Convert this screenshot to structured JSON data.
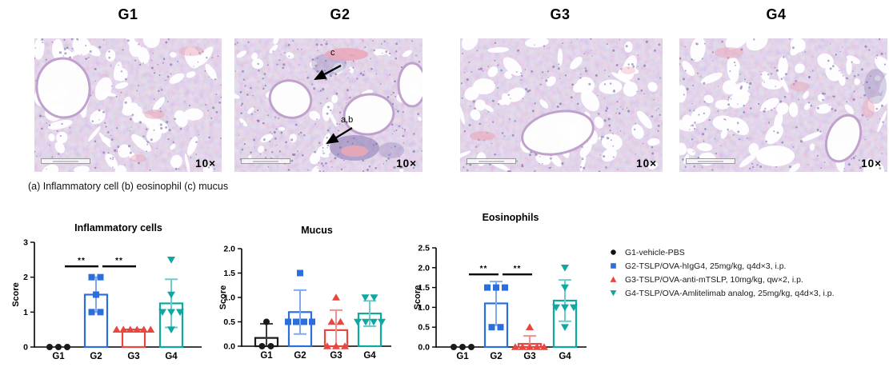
{
  "figure": {
    "panels": [
      {
        "id": "G1",
        "title": "G1",
        "magnification": "10×"
      },
      {
        "id": "G2",
        "title": "G2",
        "magnification": "10×",
        "annotations": [
          {
            "label": "c"
          },
          {
            "label": "a,b"
          }
        ]
      },
      {
        "id": "G3",
        "title": "G3",
        "magnification": "10×"
      },
      {
        "id": "G4",
        "title": "G4",
        "magnification": "10×"
      }
    ],
    "caption": "(a) Inflammatory cell (b) eosinophil (c) mucus"
  },
  "chart_data": [
    {
      "type": "bar",
      "title": "Inflammatory cells",
      "ylabel": "Score",
      "ylim": [
        0,
        3
      ],
      "yticks": [
        0,
        1,
        2,
        3
      ],
      "ytick_labels": [
        "0",
        "1",
        "2",
        "3"
      ],
      "categories": [
        "G1",
        "G2",
        "G3",
        "G4"
      ],
      "series": [
        {
          "name": "G1",
          "color": "#1a1a1a",
          "marker": "circle",
          "mean": 0,
          "sd": 0,
          "points": [
            0,
            0,
            0
          ]
        },
        {
          "name": "G2",
          "color": "#2b6fdf",
          "marker": "square",
          "mean": 1.5,
          "sd": 0.5,
          "points": [
            2,
            2,
            1.5,
            1,
            1
          ]
        },
        {
          "name": "G3",
          "color": "#e8463f",
          "marker": "triangle-up",
          "mean": 0.5,
          "sd": 0,
          "points": [
            0.5,
            0.5,
            0.5,
            0.5,
            0.5,
            0.5
          ]
        },
        {
          "name": "G4",
          "color": "#0ea8a2",
          "marker": "triangle-down",
          "mean": 1.25,
          "sd": 0.69,
          "points": [
            2.5,
            1.5,
            1,
            1,
            1,
            0.5
          ]
        }
      ],
      "significance": [
        {
          "from": "G1",
          "to": "G2",
          "label": "**",
          "y": 2.31
        },
        {
          "from": "G2",
          "to": "G3",
          "label": "**",
          "y": 2.31
        }
      ]
    },
    {
      "type": "bar",
      "title": "Mucus",
      "ylabel": "Score",
      "ylim": [
        0,
        2
      ],
      "yticks": [
        0,
        0.5,
        1,
        1.5,
        2
      ],
      "ytick_labels": [
        "0.0",
        "0.5",
        "1.0",
        "1.5",
        "2.0"
      ],
      "categories": [
        "G1",
        "G2",
        "G3",
        "G4"
      ],
      "series": [
        {
          "name": "G1",
          "color": "#1a1a1a",
          "marker": "circle",
          "mean": 0.17,
          "sd": 0.29,
          "points": [
            0.5,
            0,
            0
          ]
        },
        {
          "name": "G2",
          "color": "#2b6fdf",
          "marker": "square",
          "mean": 0.7,
          "sd": 0.45,
          "points": [
            1.5,
            0.5,
            0.5,
            0.5,
            0.5
          ]
        },
        {
          "name": "G3",
          "color": "#e8463f",
          "marker": "triangle-up",
          "mean": 0.33,
          "sd": 0.41,
          "points": [
            1,
            0.5,
            0.5,
            0,
            0,
            0
          ]
        },
        {
          "name": "G4",
          "color": "#0ea8a2",
          "marker": "triangle-down",
          "mean": 0.67,
          "sd": 0.26,
          "points": [
            1,
            1,
            0.5,
            0.5,
            0.5,
            0.5
          ]
        }
      ],
      "significance": []
    },
    {
      "type": "bar",
      "title": "Eosinophils",
      "ylabel": "Score",
      "ylim": [
        0,
        2.5
      ],
      "yticks": [
        0,
        0.5,
        1,
        1.5,
        2,
        2.5
      ],
      "ytick_labels": [
        "0.0",
        "0.5",
        "1.0",
        "1.5",
        "2.0",
        "2.5"
      ],
      "categories": [
        "G1",
        "G2",
        "G3",
        "G4"
      ],
      "series": [
        {
          "name": "G1",
          "color": "#1a1a1a",
          "marker": "circle",
          "mean": 0,
          "sd": 0,
          "points": [
            0,
            0,
            0
          ]
        },
        {
          "name": "G2",
          "color": "#2b6fdf",
          "marker": "square",
          "mean": 1.1,
          "sd": 0.55,
          "points": [
            1.5,
            1.5,
            1.5,
            0.5,
            0.5
          ]
        },
        {
          "name": "G3",
          "color": "#e8463f",
          "marker": "triangle-up",
          "mean": 0.08,
          "sd": 0.2,
          "points": [
            0.5,
            0,
            0,
            0,
            0,
            0
          ]
        },
        {
          "name": "G4",
          "color": "#0ea8a2",
          "marker": "triangle-down",
          "mean": 1.17,
          "sd": 0.52,
          "points": [
            2,
            1.5,
            1,
            1,
            1,
            0.5
          ]
        }
      ],
      "significance": [
        {
          "from": "G1",
          "to": "G2",
          "label": "**",
          "y": 1.83
        },
        {
          "from": "G2",
          "to": "G3",
          "label": "**",
          "y": 1.83
        }
      ]
    }
  ],
  "legend": {
    "items": [
      {
        "marker": "circle",
        "color": "#111111",
        "label": "G1-vehicle-PBS"
      },
      {
        "marker": "square",
        "color": "#2b6fdf",
        "label": "G2-TSLP/OVA-hIgG4, 25mg/kg, q4d×3, i.p."
      },
      {
        "marker": "triangle-up",
        "color": "#e8463f",
        "label": "G3-TSLP/OVA-anti-mTSLP, 10mg/kg, qw×2, i.p."
      },
      {
        "marker": "triangle-down",
        "color": "#0ea8a2",
        "label": "G4-TSLP/OVA-Amlitelimab analog, 25mg/kg, q4d×3, i.p."
      }
    ]
  }
}
